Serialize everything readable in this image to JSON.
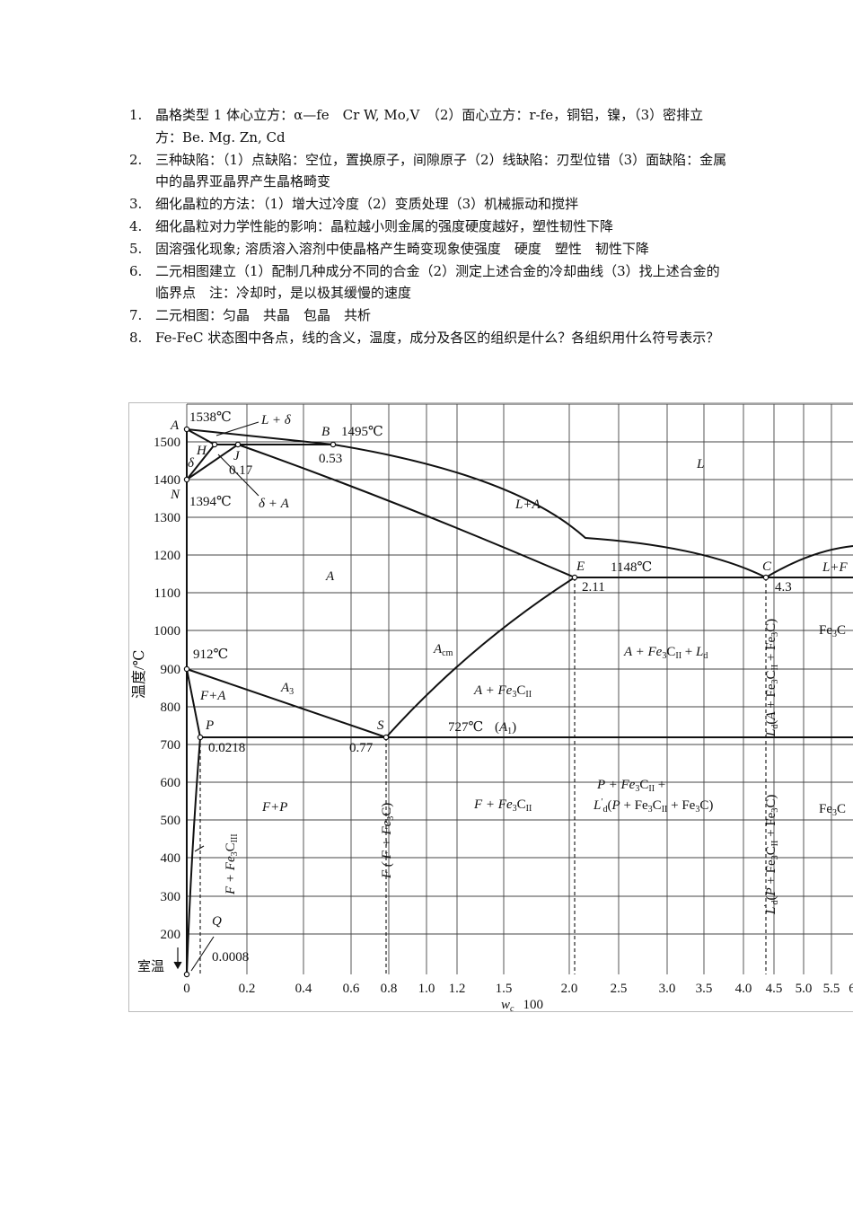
{
  "questions": [
    {
      "num": "1.",
      "text": "晶格类型 1 体心立方：α—fe　Cr W, Mo,V　（2）面心立方：r-fe，铜铝，镍，（3）密排立方：Be. Mg. Zn, Cd"
    },
    {
      "num": "2.",
      "text": "三种缺陷：（1）点缺陷：空位，置换原子，间隙原子（2）线缺陷：刃型位错（3）面缺陷：金属中的晶界亚晶界产生晶格畸变"
    },
    {
      "num": "3.",
      "text": "细化晶粒的方法：（1）增大过冷度（2）变质处理（3）机械振动和搅拌"
    },
    {
      "num": "4.",
      "text": "细化晶粒对力学性能的影响：晶粒越小则金属的强度硬度越好，塑性韧性下降"
    },
    {
      "num": "5.",
      "text": "固溶强化现象; 溶质溶入溶剂中使晶格产生畸变现象使强度　硬度　塑性　韧性下降"
    },
    {
      "num": "6.",
      "text": "二元相图建立（1）配制几种成分不同的合金（2）测定上述合金的冷却曲线（3）找上述合金的临界点　注：冷却时，是以极其缓慢的速度"
    },
    {
      "num": "7.",
      "text": "二元相图：匀晶　共晶　包晶　共析"
    },
    {
      "num": "8.",
      "text": "Fe-FeC 状态图中各点，线的含义，温度，成分及各区的组织是什么？各组织用什么符号表示？"
    }
  ],
  "diagram": {
    "axis_y_title": "温度/℃",
    "axis_x_title": "w",
    "axis_x_title_sub": "c",
    "axis_x_title_tail": "100",
    "room_temp_label": "室温",
    "y_ticks": [
      "1500",
      "1400",
      "1300",
      "1200",
      "1100",
      "1000",
      "900",
      "800",
      "700",
      "600",
      "500",
      "400",
      "300",
      "200"
    ],
    "x_ticks": [
      "0",
      "0.2",
      "0.4",
      "0.6",
      "0.8",
      "1.0",
      "1.2",
      "1.5",
      "2.0",
      "2.5",
      "3.0",
      "3.5",
      "4.0",
      "4.5",
      "5.0",
      "5.5",
      "6"
    ],
    "points": {
      "A": "A",
      "A_temp": "1538℃",
      "B": "B",
      "B_temp": "1495℃",
      "B_comp": "0.53",
      "H": "H",
      "J": "J",
      "J_comp": "0.17",
      "N": "N",
      "N_temp": "1394℃",
      "delta": "δ",
      "E": "E",
      "E_temp": "1148℃",
      "E_comp": "2.11",
      "C": "C",
      "C_comp": "4.3",
      "G_temp": "912℃",
      "P": "P",
      "P_comp": "0.0218",
      "S": "S",
      "S_comp": "0.77",
      "S_temp": "727℃",
      "A1_main": "A",
      "A1_sub": "1",
      "Q": "Q",
      "Q_comp": "0.0008"
    },
    "regions": {
      "L_delta": "L + δ",
      "delta_A": "δ + A",
      "L": "L",
      "L_A": "L+A",
      "L_F_part": "L+F",
      "A": "A",
      "Acm": "A",
      "Acm_sub": "cm",
      "A3": "A",
      "A3_sub": "3",
      "F_A": "F+A",
      "A_Fe3CII": "A + Fe",
      "A_Fe3CII_ld": "A + Fe",
      "F_P": "F+P",
      "F_Fe3CII": "F + Fe",
      "P_Fe3CII": "P + Fe",
      "Ld_prime": "L",
      "Fe3C_right1": "Fe",
      "Fe3C_right2": "Fe",
      "F_Fe3CIII": "F + Fe",
      "F_F_Fe3C": "F ( F + Fe",
      "Ld_A_Fe3C": "L",
      "Ld_P_Fe3C": "L"
    }
  }
}
